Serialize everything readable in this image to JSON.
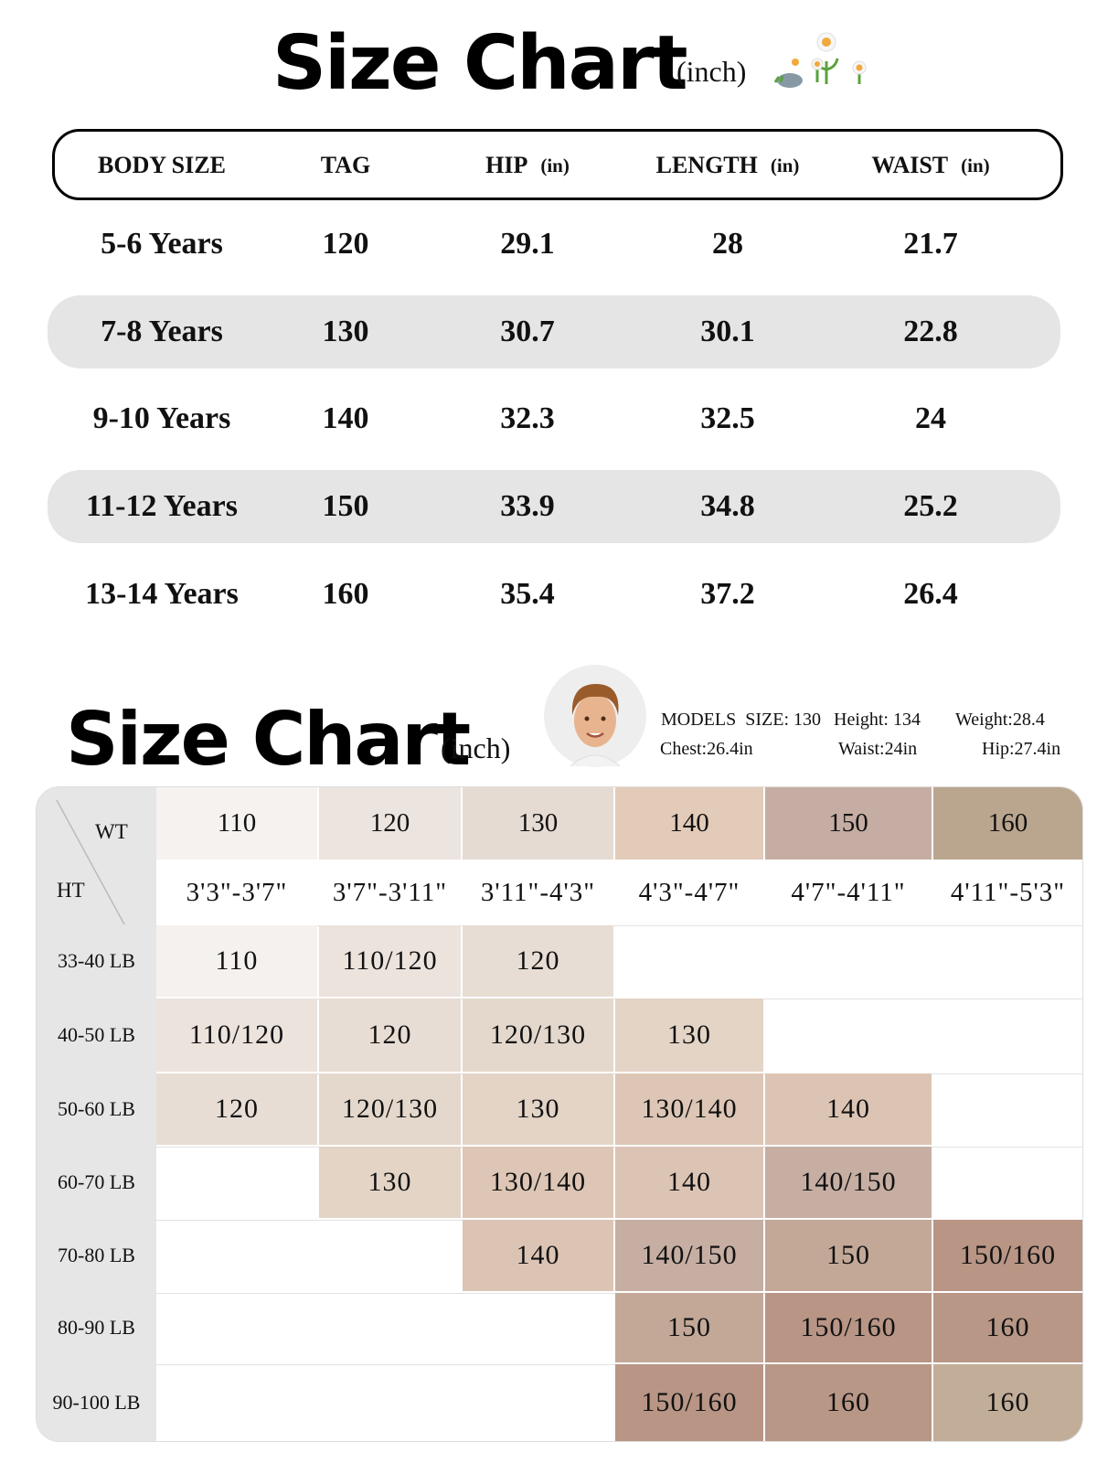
{
  "top": {
    "title": "Size Chart",
    "unit": "(inch)",
    "headers": [
      {
        "label": "BODY SIZE"
      },
      {
        "label": "TAG"
      },
      {
        "label": "HIP",
        "unit": "(in)"
      },
      {
        "label": "LENGTH",
        "unit": "(in)"
      },
      {
        "label": "WAIST",
        "unit": "(in)"
      }
    ],
    "rows": [
      [
        "5-6 Years",
        "120",
        "29.1",
        "28",
        "21.7"
      ],
      [
        "7-8 Years",
        "130",
        "30.7",
        "30.1",
        "22.8"
      ],
      [
        "9-10 Years",
        "140",
        "32.3",
        "32.5",
        "24"
      ],
      [
        "11-12 Years",
        "150",
        "33.9",
        "34.8",
        "25.2"
      ],
      [
        "13-14 Years",
        "160",
        "35.4",
        "37.2",
        "26.4"
      ]
    ]
  },
  "bottom": {
    "title": "Size Chart",
    "unit": "(inch)",
    "model": [
      "MODELS  SIZE: 130",
      "Height: 134",
      "Weight:28.4",
      "Chest:26.4in",
      "Waist:24in",
      "Hip:27.4in"
    ],
    "wt_label": "WT",
    "ht_label": "HT",
    "columns": [
      {
        "size": "110",
        "height": "3'3\"-3'7\""
      },
      {
        "size": "120",
        "height": "3'7\"-3'11\""
      },
      {
        "size": "130",
        "height": "3'11\"-4'3\""
      },
      {
        "size": "140",
        "height": "4'3\"-4'7\""
      },
      {
        "size": "150",
        "height": "4'7\"-4'11\""
      },
      {
        "size": "160",
        "height": "4'11\"-5'3\""
      }
    ],
    "rows": [
      {
        "weight": "33-40 LB",
        "cells": [
          "110",
          "110/120",
          "120",
          null,
          null,
          null
        ]
      },
      {
        "weight": "40-50 LB",
        "cells": [
          "110/120",
          "120",
          "120/130",
          "130",
          null,
          null
        ]
      },
      {
        "weight": "50-60 LB",
        "cells": [
          "120",
          "120/130",
          "130",
          "130/140",
          "140",
          null
        ]
      },
      {
        "weight": "60-70 LB",
        "cells": [
          null,
          "130",
          "130/140",
          "140",
          "140/150",
          null
        ]
      },
      {
        "weight": "70-80 LB",
        "cells": [
          null,
          null,
          "140",
          "140/150",
          "150",
          "150/160"
        ]
      },
      {
        "weight": "80-90 LB",
        "cells": [
          null,
          null,
          null,
          "150",
          "150/160",
          "160"
        ]
      },
      {
        "weight": "90-100 LB",
        "cells": [
          null,
          null,
          null,
          "150/160",
          "160",
          "160"
        ]
      }
    ]
  }
}
